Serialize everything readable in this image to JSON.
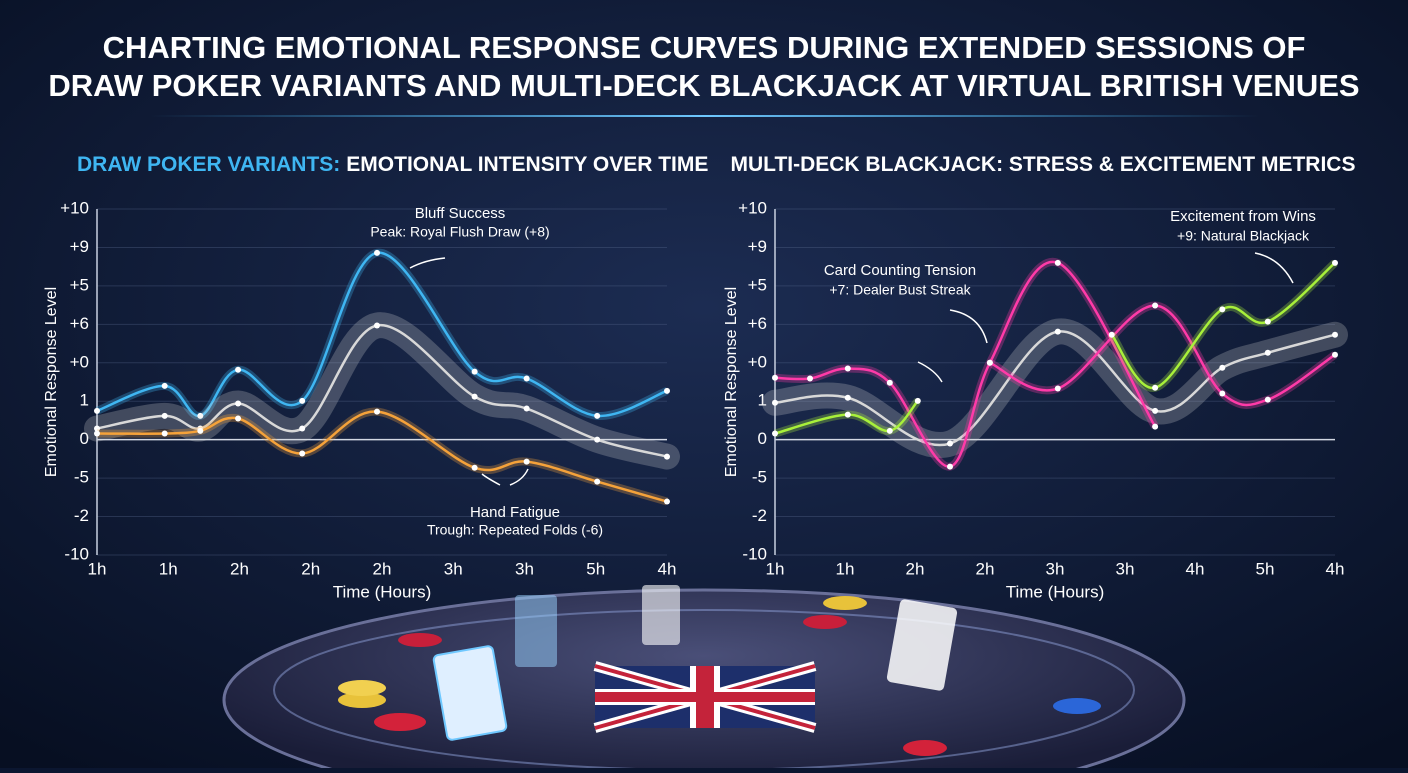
{
  "heading": [
    "CHARTING EMOTIONAL RESPONSE CURVES DURING EXTENDED SESSIONS OF",
    "DRAW POKER VARIANTS AND MULTI-DECK BLACKJACK AT VIRTUAL BRITISH VENUES"
  ],
  "chart_data": [
    {
      "type": "line",
      "title": [
        "DRAW POKER VARIANTS:",
        "EMOTIONAL INTENSITY OVER TIME"
      ],
      "y_label": "Emotional Response Level",
      "x_label": "Time (Hours)",
      "xlim": [
        0,
        8
      ],
      "ylim": [
        -3,
        6
      ],
      "xticks": [
        {
          "value": 0,
          "label": "1h"
        },
        {
          "value": 1,
          "label": "1h"
        },
        {
          "value": 2,
          "label": "2h"
        },
        {
          "value": 3,
          "label": "2h"
        },
        {
          "value": 4,
          "label": "2h"
        },
        {
          "value": 5,
          "label": "3h"
        },
        {
          "value": 6,
          "label": "3h"
        },
        {
          "value": 7,
          "label": "5h"
        },
        {
          "value": 8,
          "label": "4h"
        }
      ],
      "yticks": [
        {
          "value": 6,
          "label": "+10"
        },
        {
          "value": 5,
          "label": "+9"
        },
        {
          "value": 4,
          "label": "+5"
        },
        {
          "value": 3,
          "label": "+6"
        },
        {
          "value": 2,
          "label": "+0"
        },
        1,
        0,
        {
          "value": -1,
          "label": "-5"
        },
        -2,
        {
          "value": -3,
          "label": "-10"
        }
      ],
      "grid": true,
      "annotations": [
        "Bluff Success",
        "Peak: Royal Flush Draw (+8)",
        "Hand Fatigue",
        "Trough: Repeated Folds (-6)"
      ],
      "series": [
        {
          "color": "#3fb6f2",
          "x": [
            0,
            0.95,
            1.45,
            1.98,
            2.88,
            3.93,
            5.3,
            6.03,
            7.02,
            8
          ],
          "values": [
            0.75,
            1.4,
            0.62,
            1.82,
            1.01,
            4.86,
            1.77,
            1.59,
            0.62,
            1.27
          ]
        },
        {
          "color": "#d8d8d8",
          "band": true,
          "x": [
            0,
            0.95,
            1.45,
            1.98,
            2.88,
            3.93,
            5.3,
            6.03,
            7.02,
            8
          ],
          "values": [
            0.29,
            0.62,
            0.29,
            0.94,
            0.29,
            2.97,
            1.12,
            0.81,
            0,
            -0.44
          ]
        },
        {
          "color": "#f5a23a",
          "x": [
            0,
            0.95,
            1.45,
            1.98,
            2.88,
            3.93,
            5.3,
            6.03,
            7.02,
            8
          ],
          "values": [
            0.16,
            0.16,
            0.23,
            0.55,
            -0.36,
            0.73,
            -0.73,
            -0.57,
            -1.09,
            -1.61
          ]
        }
      ]
    },
    {
      "type": "line",
      "title": [
        "MULTI-DECK BLACKJACK: STRESS & EXCITEMENT METRICS"
      ],
      "y_label": "Emotional Response Level",
      "x_label": "Time (Hours)",
      "xlim": [
        0,
        8
      ],
      "ylim": [
        -3,
        6
      ],
      "xticks": [
        {
          "value": 0,
          "label": "1h"
        },
        {
          "value": 1,
          "label": "1h"
        },
        {
          "value": 2,
          "label": "2h"
        },
        {
          "value": 3,
          "label": "2h"
        },
        {
          "value": 4,
          "label": "3h"
        },
        {
          "value": 5,
          "label": "3h"
        },
        {
          "value": 6,
          "label": "4h"
        },
        {
          "value": 7,
          "label": "5h"
        },
        {
          "value": 8,
          "label": "4h"
        }
      ],
      "yticks": [
        {
          "value": 6,
          "label": "+10"
        },
        {
          "value": 5,
          "label": "+9"
        },
        {
          "value": 4,
          "label": "+5"
        },
        {
          "value": 3,
          "label": "+6"
        },
        {
          "value": 2,
          "label": "+0"
        },
        1,
        0,
        {
          "value": -1,
          "label": "-5"
        },
        -2,
        {
          "value": -3,
          "label": "-10"
        }
      ],
      "grid": true,
      "annotations": [
        "Card Counting Tension",
        "+7: Dealer Bust Streak",
        "Excitement from Wins",
        "+9: Natural Blackjack"
      ],
      "series": [
        {
          "color": "#d8d8d8",
          "band": true,
          "x": [
            0,
            1.04,
            2.5,
            4.04,
            5.43,
            6.39,
            7.04,
            8
          ],
          "values": [
            0.96,
            1.09,
            -0.1,
            2.81,
            0.75,
            1.87,
            2.26,
            2.73
          ]
        },
        {
          "color": "#ff3aa8",
          "x": [
            0,
            0.5,
            1.04,
            1.64,
            2.5,
            3.07,
            4.04,
            5.43
          ],
          "values": [
            1.61,
            1.59,
            1.85,
            1.48,
            -0.7,
            2.0,
            4.6,
            0.34
          ]
        },
        {
          "color": "#ff3aa8",
          "x": [
            3.07,
            4.04,
            5.43,
            6.39,
            7.04,
            8
          ],
          "values": [
            2.0,
            1.33,
            3.49,
            1.2,
            1.04,
            2.21
          ]
        },
        {
          "color": "#a8f03a",
          "x": [
            0,
            1.04,
            1.64,
            2.04,
            3.0,
            4.81,
            5.43,
            6.39,
            7.04,
            8
          ],
          "values": [
            0.16,
            0.65,
            0.23,
            1.01,
            null,
            2.73,
            1.35,
            3.39,
            3.07,
            4.6
          ]
        }
      ]
    }
  ]
}
